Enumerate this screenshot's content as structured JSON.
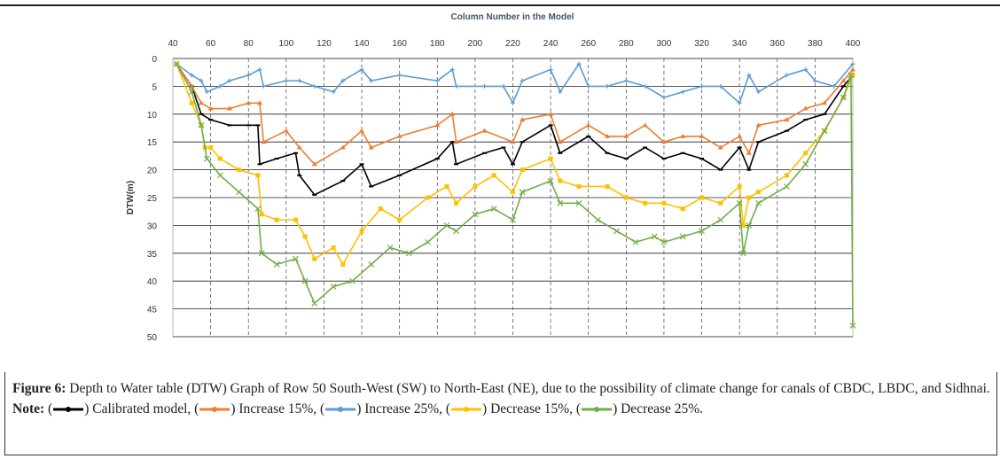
{
  "chart_data": {
    "type": "line",
    "title": "Column Number in the  Model",
    "xlabel": "Column Number in the  Model",
    "ylabel": "DTW(m)",
    "xlim": [
      40,
      400
    ],
    "ylim": [
      0,
      50
    ],
    "y_inverted": true,
    "x_axis_position": "top",
    "xticks": [
      40,
      60,
      80,
      100,
      120,
      140,
      160,
      180,
      200,
      220,
      240,
      260,
      280,
      300,
      320,
      340,
      360,
      380,
      400
    ],
    "yticks": [
      0,
      5,
      10,
      15,
      20,
      25,
      30,
      35,
      40,
      45,
      50
    ],
    "grid": true,
    "series": [
      {
        "name": "Calibrated model",
        "color": "#000000",
        "marker": "dash",
        "points": [
          [
            42,
            1
          ],
          [
            50,
            5
          ],
          [
            55,
            10
          ],
          [
            60,
            11
          ],
          [
            70,
            12
          ],
          [
            80,
            12
          ],
          [
            85,
            12
          ],
          [
            86,
            19
          ],
          [
            95,
            18
          ],
          [
            105,
            17
          ],
          [
            107,
            21
          ],
          [
            115,
            24.5
          ],
          [
            130,
            22
          ],
          [
            140,
            19
          ],
          [
            145,
            23
          ],
          [
            160,
            21
          ],
          [
            180,
            18
          ],
          [
            188,
            15
          ],
          [
            190,
            19
          ],
          [
            205,
            17
          ],
          [
            215,
            16
          ],
          [
            220,
            19
          ],
          [
            225,
            15
          ],
          [
            240,
            12
          ],
          [
            245,
            17
          ],
          [
            260,
            14
          ],
          [
            270,
            17
          ],
          [
            280,
            18
          ],
          [
            290,
            16
          ],
          [
            300,
            18
          ],
          [
            310,
            17
          ],
          [
            320,
            18
          ],
          [
            330,
            20
          ],
          [
            340,
            16
          ],
          [
            345,
            20
          ],
          [
            350,
            15
          ],
          [
            365,
            13
          ],
          [
            375,
            11
          ],
          [
            385,
            10
          ],
          [
            395,
            5
          ],
          [
            400,
            3
          ]
        ]
      },
      {
        "name": "Increase 15%",
        "color": "#ed7d31",
        "marker": "triangle",
        "points": [
          [
            42,
            1
          ],
          [
            50,
            5
          ],
          [
            55,
            8
          ],
          [
            60,
            9
          ],
          [
            70,
            9
          ],
          [
            80,
            8
          ],
          [
            86,
            8
          ],
          [
            88,
            15
          ],
          [
            100,
            13
          ],
          [
            107,
            16
          ],
          [
            115,
            19
          ],
          [
            130,
            16
          ],
          [
            140,
            13
          ],
          [
            145,
            16
          ],
          [
            160,
            14
          ],
          [
            180,
            12
          ],
          [
            188,
            10
          ],
          [
            190,
            15
          ],
          [
            205,
            13
          ],
          [
            220,
            15
          ],
          [
            225,
            11
          ],
          [
            240,
            10
          ],
          [
            245,
            15
          ],
          [
            260,
            12
          ],
          [
            270,
            14
          ],
          [
            280,
            14
          ],
          [
            290,
            12
          ],
          [
            300,
            15
          ],
          [
            310,
            14
          ],
          [
            320,
            14
          ],
          [
            330,
            16
          ],
          [
            340,
            14
          ],
          [
            345,
            17
          ],
          [
            350,
            12
          ],
          [
            365,
            11
          ],
          [
            375,
            9
          ],
          [
            385,
            8
          ],
          [
            395,
            4
          ],
          [
            400,
            2
          ]
        ]
      },
      {
        "name": "Increase 25%",
        "color": "#5b9bd5",
        "marker": "plus",
        "points": [
          [
            42,
            1
          ],
          [
            50,
            3
          ],
          [
            55,
            4
          ],
          [
            58,
            6
          ],
          [
            65,
            5
          ],
          [
            70,
            4
          ],
          [
            80,
            3
          ],
          [
            86,
            2
          ],
          [
            88,
            5
          ],
          [
            100,
            4
          ],
          [
            107,
            4
          ],
          [
            115,
            5
          ],
          [
            125,
            6
          ],
          [
            130,
            4
          ],
          [
            140,
            2
          ],
          [
            145,
            4
          ],
          [
            160,
            3
          ],
          [
            180,
            4
          ],
          [
            188,
            2
          ],
          [
            190,
            5
          ],
          [
            205,
            5
          ],
          [
            215,
            5
          ],
          [
            220,
            8
          ],
          [
            225,
            4
          ],
          [
            240,
            2
          ],
          [
            245,
            6
          ],
          [
            255,
            1
          ],
          [
            260,
            5
          ],
          [
            270,
            5
          ],
          [
            280,
            4
          ],
          [
            290,
            5
          ],
          [
            300,
            7
          ],
          [
            310,
            6
          ],
          [
            320,
            5
          ],
          [
            330,
            5
          ],
          [
            340,
            8
          ],
          [
            345,
            3
          ],
          [
            350,
            6
          ],
          [
            365,
            3
          ],
          [
            375,
            2
          ],
          [
            380,
            4
          ],
          [
            390,
            5
          ],
          [
            400,
            1
          ]
        ]
      },
      {
        "name": "Decrease 15%",
        "color": "#ffc000",
        "marker": "square",
        "points": [
          [
            42,
            1
          ],
          [
            50,
            8
          ],
          [
            55,
            12
          ],
          [
            57,
            16
          ],
          [
            60,
            16
          ],
          [
            65,
            18
          ],
          [
            75,
            20
          ],
          [
            85,
            21
          ],
          [
            87,
            28
          ],
          [
            95,
            29
          ],
          [
            105,
            29
          ],
          [
            110,
            32
          ],
          [
            115,
            36
          ],
          [
            125,
            34
          ],
          [
            130,
            37
          ],
          [
            140,
            31
          ],
          [
            150,
            27
          ],
          [
            160,
            29
          ],
          [
            175,
            25
          ],
          [
            185,
            23
          ],
          [
            190,
            26
          ],
          [
            200,
            23
          ],
          [
            210,
            21
          ],
          [
            220,
            24
          ],
          [
            225,
            20
          ],
          [
            240,
            18
          ],
          [
            245,
            22
          ],
          [
            255,
            23
          ],
          [
            270,
            23
          ],
          [
            280,
            25
          ],
          [
            290,
            26
          ],
          [
            300,
            26
          ],
          [
            310,
            27
          ],
          [
            320,
            25
          ],
          [
            330,
            26
          ],
          [
            340,
            23
          ],
          [
            342,
            30
          ],
          [
            345,
            25
          ],
          [
            350,
            24
          ],
          [
            365,
            21
          ],
          [
            375,
            17
          ],
          [
            385,
            13
          ],
          [
            395,
            7
          ],
          [
            400,
            3
          ]
        ]
      },
      {
        "name": "Decrease 25%",
        "color": "#70ad47",
        "marker": "x",
        "points": [
          [
            42,
            1
          ],
          [
            50,
            6
          ],
          [
            55,
            12
          ],
          [
            58,
            18
          ],
          [
            65,
            21
          ],
          [
            75,
            24
          ],
          [
            85,
            27
          ],
          [
            87,
            35
          ],
          [
            95,
            37
          ],
          [
            105,
            36
          ],
          [
            110,
            40
          ],
          [
            115,
            44
          ],
          [
            125,
            41
          ],
          [
            135,
            40
          ],
          [
            145,
            37
          ],
          [
            155,
            34
          ],
          [
            165,
            35
          ],
          [
            175,
            33
          ],
          [
            185,
            30
          ],
          [
            190,
            31
          ],
          [
            200,
            28
          ],
          [
            210,
            27
          ],
          [
            220,
            29
          ],
          [
            225,
            24
          ],
          [
            240,
            22
          ],
          [
            245,
            26
          ],
          [
            255,
            26
          ],
          [
            265,
            29
          ],
          [
            275,
            31
          ],
          [
            285,
            33
          ],
          [
            295,
            32
          ],
          [
            300,
            33
          ],
          [
            310,
            32
          ],
          [
            320,
            31
          ],
          [
            330,
            29
          ],
          [
            340,
            26
          ],
          [
            342,
            35
          ],
          [
            345,
            30
          ],
          [
            350,
            26
          ],
          [
            365,
            23
          ],
          [
            375,
            19
          ],
          [
            385,
            13
          ],
          [
            395,
            7
          ],
          [
            399,
            3
          ],
          [
            400,
            48
          ]
        ]
      }
    ]
  },
  "caption": {
    "label": "Figure 6:",
    "text": " Depth to Water table (DTW) Graph of Row 50 South-West (SW) to North-East (NE), due to the possibility of climate change for canals of CBDC, LBDC, and Sidhnai. ",
    "note_label": "Note:",
    "legend": [
      {
        "text": ") Calibrated model, (",
        "color": "#000000"
      },
      {
        "text": ") Increase 15%, (",
        "color": "#ed7d31"
      },
      {
        "text": ") Increase 25%, (",
        "color": "#5b9bd5"
      },
      {
        "text": ") Decrease 15%, (",
        "color": "#ffc000"
      },
      {
        "text": ") Decrease 25%.",
        "color": "#70ad47"
      }
    ]
  }
}
